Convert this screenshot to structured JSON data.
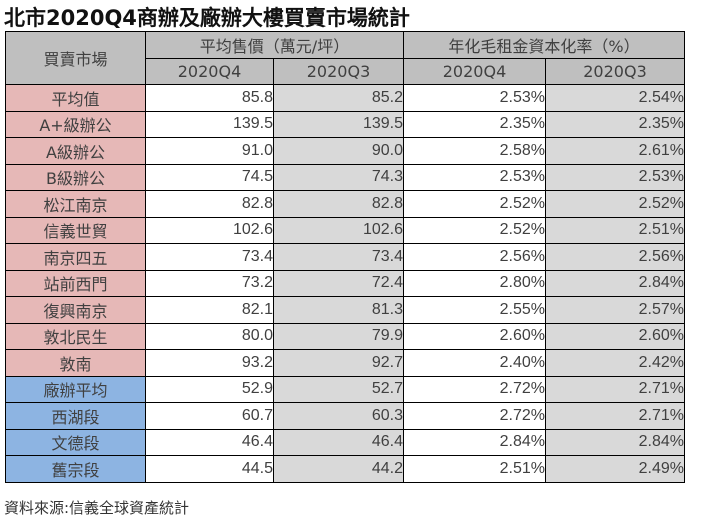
{
  "title": "北市2020Q4商辦及廠辦大樓買賣市場統計",
  "table": {
    "headers": {
      "market": "買賣市場",
      "price_group": "平均售價（萬元/坪）",
      "yield_group": "年化毛租金資本化率（%）",
      "price_q4": "2020Q4",
      "price_q3": "2020Q3",
      "yield_q4": "2020Q4",
      "yield_q3": "2020Q3"
    },
    "colors": {
      "header_bg": "#BFBFBF",
      "office_label_bg": "#E6B8B7",
      "factory_label_bg": "#8DB4E2",
      "q3_column_bg": "#D9D9D9",
      "q4_column_bg": "#FFFFFF"
    },
    "rows": [
      {
        "market": "平均值",
        "category": "office",
        "price_q4": "85.8",
        "price_q3": "85.2",
        "yield_q4": "2.53%",
        "yield_q3": "2.54%"
      },
      {
        "market": "A+級辦公",
        "category": "office",
        "price_q4": "139.5",
        "price_q3": "139.5",
        "yield_q4": "2.35%",
        "yield_q3": "2.35%"
      },
      {
        "market": "A級辦公",
        "category": "office",
        "price_q4": "91.0",
        "price_q3": "90.0",
        "yield_q4": "2.58%",
        "yield_q3": "2.61%"
      },
      {
        "market": "B級辦公",
        "category": "office",
        "price_q4": "74.5",
        "price_q3": "74.3",
        "yield_q4": "2.53%",
        "yield_q3": "2.53%"
      },
      {
        "market": "松江南京",
        "category": "office",
        "price_q4": "82.8",
        "price_q3": "82.8",
        "yield_q4": "2.52%",
        "yield_q3": "2.52%"
      },
      {
        "market": "信義世貿",
        "category": "office",
        "price_q4": "102.6",
        "price_q3": "102.6",
        "yield_q4": "2.52%",
        "yield_q3": "2.51%"
      },
      {
        "market": "南京四五",
        "category": "office",
        "price_q4": "73.4",
        "price_q3": "73.4",
        "yield_q4": "2.56%",
        "yield_q3": "2.56%"
      },
      {
        "market": "站前西門",
        "category": "office",
        "price_q4": "73.2",
        "price_q3": "72.4",
        "yield_q4": "2.80%",
        "yield_q3": "2.84%"
      },
      {
        "market": "復興南京",
        "category": "office",
        "price_q4": "82.1",
        "price_q3": "81.3",
        "yield_q4": "2.55%",
        "yield_q3": "2.57%"
      },
      {
        "market": "敦北民生",
        "category": "office",
        "price_q4": "80.0",
        "price_q3": "79.9",
        "yield_q4": "2.60%",
        "yield_q3": "2.60%"
      },
      {
        "market": "敦南",
        "category": "office",
        "price_q4": "93.2",
        "price_q3": "92.7",
        "yield_q4": "2.40%",
        "yield_q3": "2.42%"
      },
      {
        "market": "廠辦平均",
        "category": "factory",
        "price_q4": "52.9",
        "price_q3": "52.7",
        "yield_q4": "2.72%",
        "yield_q3": "2.71%"
      },
      {
        "market": "西湖段",
        "category": "factory",
        "price_q4": "60.7",
        "price_q3": "60.3",
        "yield_q4": "2.72%",
        "yield_q3": "2.71%"
      },
      {
        "market": "文德段",
        "category": "factory",
        "price_q4": "46.4",
        "price_q3": "46.4",
        "yield_q4": "2.84%",
        "yield_q3": "2.84%"
      },
      {
        "market": "舊宗段",
        "category": "factory",
        "price_q4": "44.5",
        "price_q3": "44.2",
        "yield_q4": "2.51%",
        "yield_q3": "2.49%"
      }
    ]
  },
  "source": "資料來源:信義全球資產統計"
}
